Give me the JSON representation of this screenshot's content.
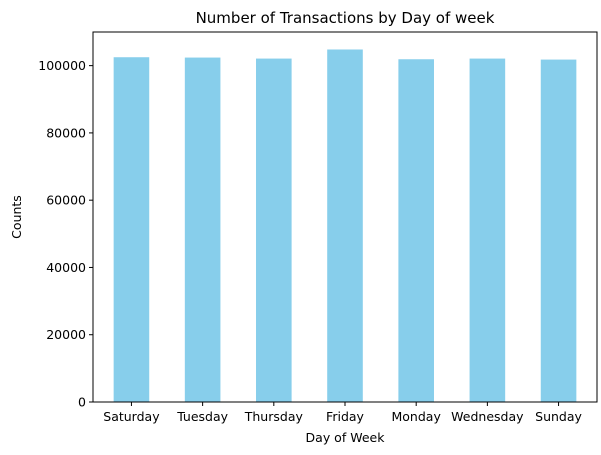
{
  "chart_data": {
    "type": "bar",
    "title": "Number of Transactions by Day of week",
    "xlabel": "Day of Week",
    "ylabel": "Counts",
    "categories": [
      "Saturday",
      "Tuesday",
      "Thursday",
      "Friday",
      "Monday",
      "Wednesday",
      "Sunday"
    ],
    "values": [
      102500,
      102400,
      102100,
      104800,
      101900,
      102100,
      101800
    ],
    "ylim": [
      0,
      110000
    ],
    "yticks": [
      0,
      20000,
      40000,
      60000,
      80000,
      100000
    ],
    "ytick_labels": [
      "0",
      "20000",
      "40000",
      "60000",
      "80000",
      "100000"
    ],
    "grid": false,
    "legend": "none",
    "bar_color": "#87ceeb"
  }
}
